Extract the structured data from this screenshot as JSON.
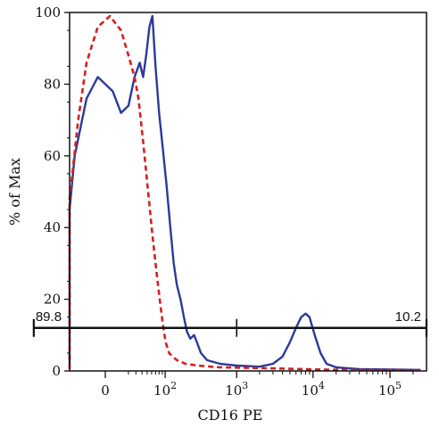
{
  "chart_data": {
    "type": "line",
    "xlabel": "CD16 PE",
    "ylabel": "% of Max",
    "xscale": "biexponential",
    "ylim": [
      0,
      100
    ],
    "yticks": [
      0,
      20,
      40,
      60,
      80,
      100
    ],
    "xticks": [
      {
        "value": 0,
        "label": "0",
        "exp": ""
      },
      {
        "value": 100,
        "label": "10",
        "exp": "2"
      },
      {
        "value": 1000,
        "label": "10",
        "exp": "3"
      },
      {
        "value": 10000,
        "label": "10",
        "exp": "4"
      },
      {
        "value": 100000,
        "label": "10",
        "exp": "5"
      }
    ],
    "gate": {
      "from": -150,
      "split": 1000,
      "to": 250000,
      "level": 12,
      "left_label": "89.8",
      "right_label": "10.2"
    },
    "series": [
      {
        "color": "#2b3a9a",
        "style": "solid",
        "points": [
          [
            -170,
            2
          ],
          [
            -150,
            8
          ],
          [
            -120,
            14
          ],
          [
            -95,
            22
          ],
          [
            -70,
            33
          ],
          [
            -50,
            45
          ],
          [
            -30,
            60
          ],
          [
            -15,
            76
          ],
          [
            -5,
            82
          ],
          [
            5,
            78
          ],
          [
            12,
            72
          ],
          [
            20,
            74
          ],
          [
            28,
            82
          ],
          [
            36,
            86
          ],
          [
            42,
            82
          ],
          [
            48,
            88
          ],
          [
            55,
            96
          ],
          [
            62,
            99
          ],
          [
            70,
            85
          ],
          [
            80,
            72
          ],
          [
            92,
            62
          ],
          [
            105,
            52
          ],
          [
            120,
            40
          ],
          [
            135,
            30
          ],
          [
            150,
            24
          ],
          [
            170,
            20
          ],
          [
            190,
            15
          ],
          [
            210,
            11
          ],
          [
            235,
            9
          ],
          [
            265,
            10
          ],
          [
            290,
            8
          ],
          [
            330,
            5
          ],
          [
            400,
            3
          ],
          [
            600,
            2
          ],
          [
            1000,
            1.5
          ],
          [
            2000,
            1.2
          ],
          [
            3000,
            2
          ],
          [
            4000,
            4
          ],
          [
            5000,
            8
          ],
          [
            6000,
            12
          ],
          [
            7000,
            15
          ],
          [
            8000,
            16
          ],
          [
            9000,
            15
          ],
          [
            10500,
            10
          ],
          [
            12500,
            5
          ],
          [
            15000,
            2
          ],
          [
            20000,
            1
          ],
          [
            40000,
            0.5
          ],
          [
            250000,
            0.3
          ]
        ]
      },
      {
        "color": "#d42020",
        "style": "dashed",
        "points": [
          [
            -150,
            0.5
          ],
          [
            -115,
            2
          ],
          [
            -90,
            6
          ],
          [
            -70,
            14
          ],
          [
            -55,
            28
          ],
          [
            -40,
            48
          ],
          [
            -25,
            70
          ],
          [
            -15,
            86
          ],
          [
            -5,
            96
          ],
          [
            3,
            99
          ],
          [
            12,
            95
          ],
          [
            20,
            88
          ],
          [
            28,
            82
          ],
          [
            34,
            76
          ],
          [
            42,
            64
          ],
          [
            52,
            50
          ],
          [
            62,
            38
          ],
          [
            72,
            28
          ],
          [
            82,
            20
          ],
          [
            92,
            13
          ],
          [
            102,
            8
          ],
          [
            115,
            5
          ],
          [
            130,
            4
          ],
          [
            150,
            3
          ],
          [
            200,
            2
          ],
          [
            300,
            1.5
          ],
          [
            600,
            1
          ],
          [
            2000,
            0.8
          ],
          [
            20000,
            0.3
          ],
          [
            250000,
            0.2
          ]
        ]
      }
    ]
  }
}
